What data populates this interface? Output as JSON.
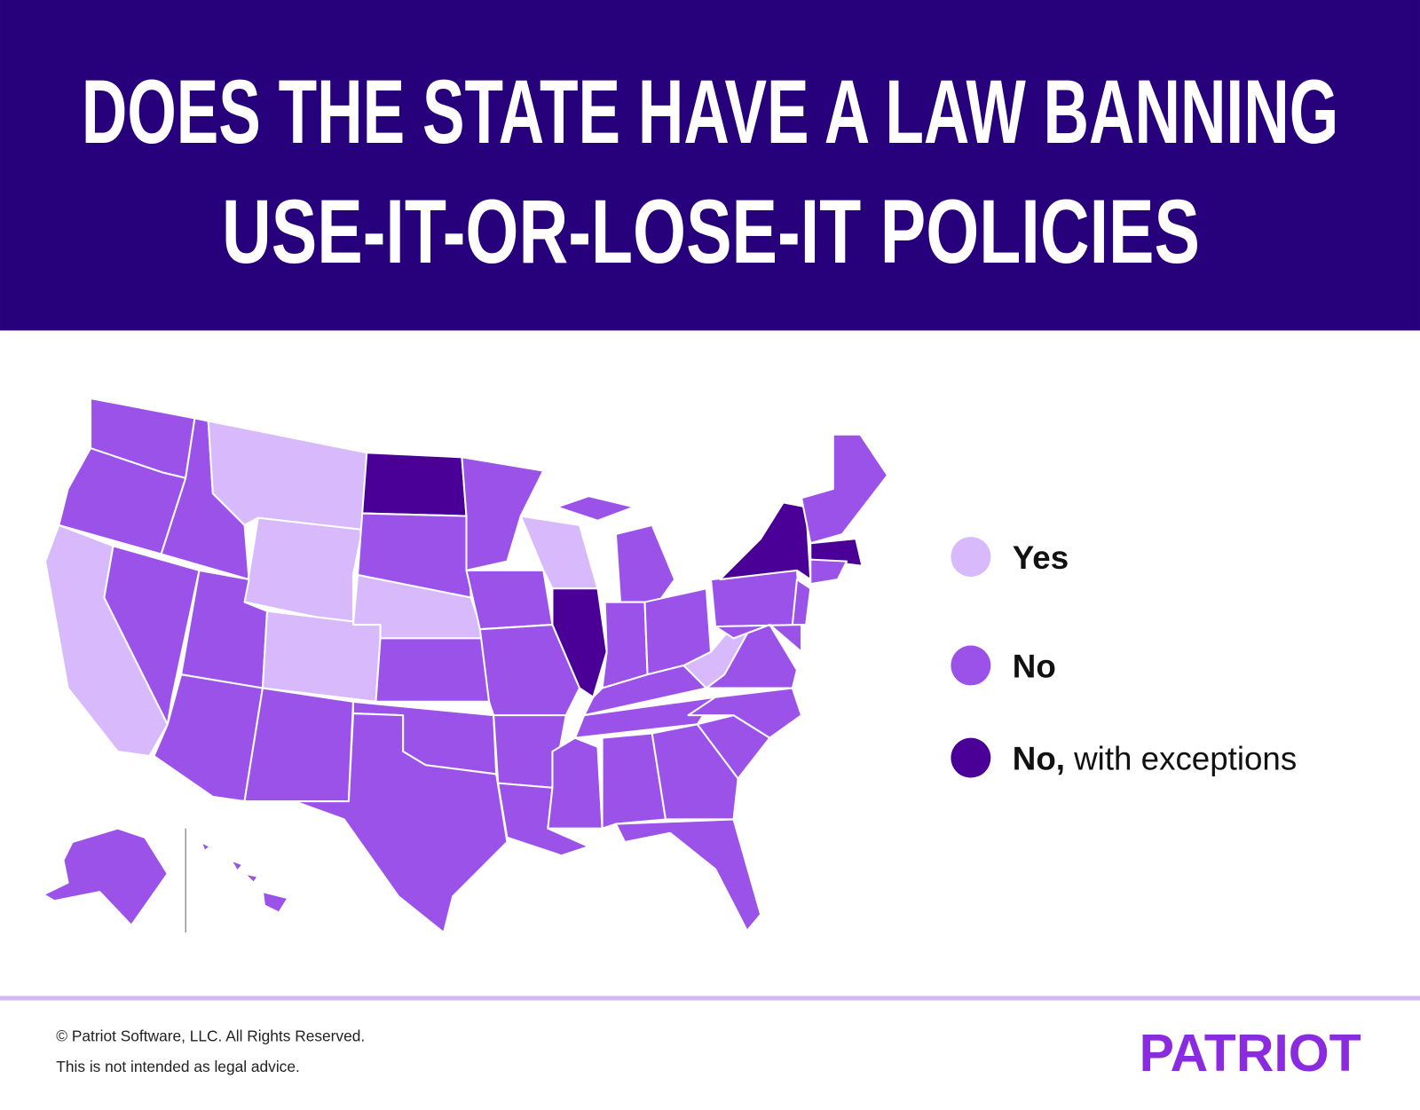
{
  "header": {
    "title_lines": [
      "DOES THE STATE HAVE A LAW BANNING",
      "USE-IT-OR-LOSE-IT POLICIES"
    ]
  },
  "legend": [
    {
      "label": "Yes",
      "color": "#d8b9fb"
    },
    {
      "label": "No",
      "color": "#9b52e9"
    },
    {
      "label": "No,",
      "note": "with exceptions",
      "color": "#4a0096"
    }
  ],
  "footer": {
    "copyright": "© Patriot Software, LLC. All Rights Reserved.",
    "disclaimer": "This is not intended as legal advice.",
    "logo": "PATRIOT"
  }
}
